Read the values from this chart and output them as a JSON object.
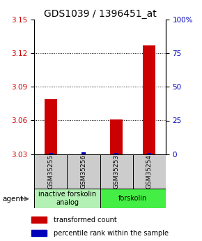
{
  "title": "GDS1039 / 1396451_at",
  "samples": [
    "GSM35255",
    "GSM35256",
    "GSM35253",
    "GSM35254"
  ],
  "red_values": [
    3.079,
    3.03,
    3.061,
    3.127
  ],
  "blue_values": [
    3.031,
    3.032,
    3.031,
    3.031
  ],
  "ylim_left": [
    3.03,
    3.15
  ],
  "yticks_left": [
    3.03,
    3.06,
    3.09,
    3.12,
    3.15
  ],
  "yticks_right": [
    0,
    25,
    50,
    75,
    100
  ],
  "groups": [
    {
      "label": "inactive forskolin\nanalog",
      "samples": [
        0,
        1
      ],
      "color": "#b3f0b3"
    },
    {
      "label": "forskolin",
      "samples": [
        2,
        3
      ],
      "color": "#44ee44"
    }
  ],
  "red_color": "#cc0000",
  "blue_color": "#0000bb",
  "sample_box_color": "#cccccc",
  "legend_red_label": "transformed count",
  "legend_blue_label": "percentile rank within the sample",
  "agent_label": "agent",
  "title_fontsize": 10,
  "tick_fontsize": 7.5,
  "sample_fontsize": 6.5,
  "group_fontsize": 7,
  "legend_fontsize": 7
}
